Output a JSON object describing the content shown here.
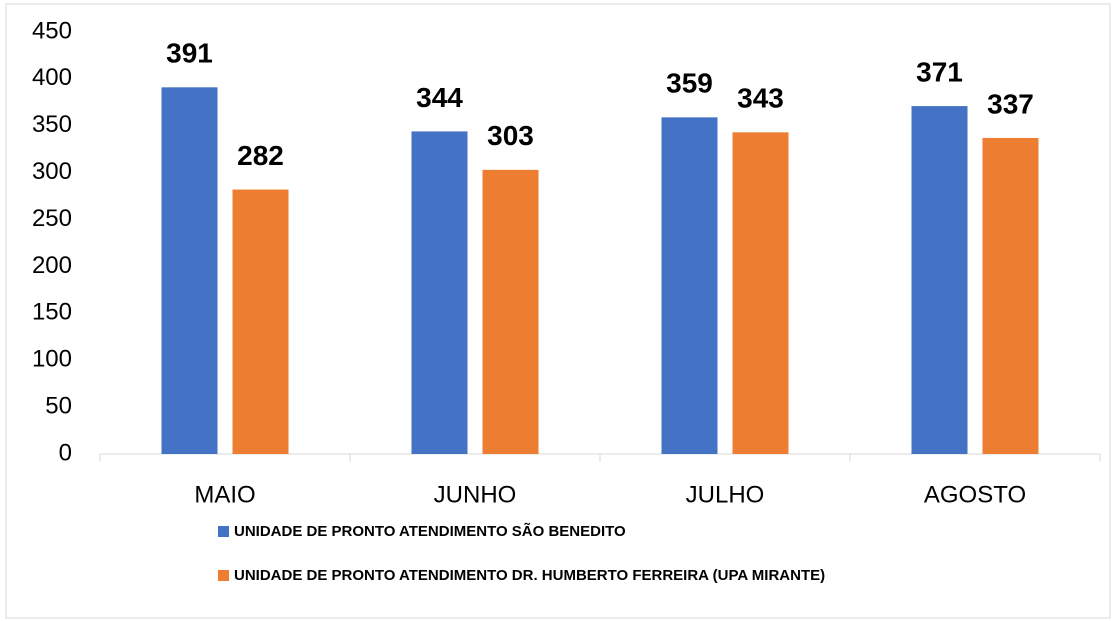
{
  "chart_data": {
    "type": "bar",
    "categories": [
      "MAIO",
      "JUNHO",
      "JULHO",
      "AGOSTO"
    ],
    "series": [
      {
        "name": "UNIDADE DE PRONTO ATENDIMENTO SÃO BENEDITO",
        "color": "#4472c4",
        "values": [
          391,
          344,
          359,
          371
        ]
      },
      {
        "name": "UNIDADE DE PRONTO ATENDIMENTO DR. HUMBERTO FERREIRA (UPA MIRANTE)",
        "color": "#ed7d31",
        "values": [
          282,
          303,
          343,
          337
        ]
      }
    ],
    "ylim": [
      0,
      450
    ],
    "yticks": [
      0,
      50,
      100,
      150,
      200,
      250,
      300,
      350,
      400,
      450
    ],
    "grid": false,
    "legend": "bottom"
  }
}
